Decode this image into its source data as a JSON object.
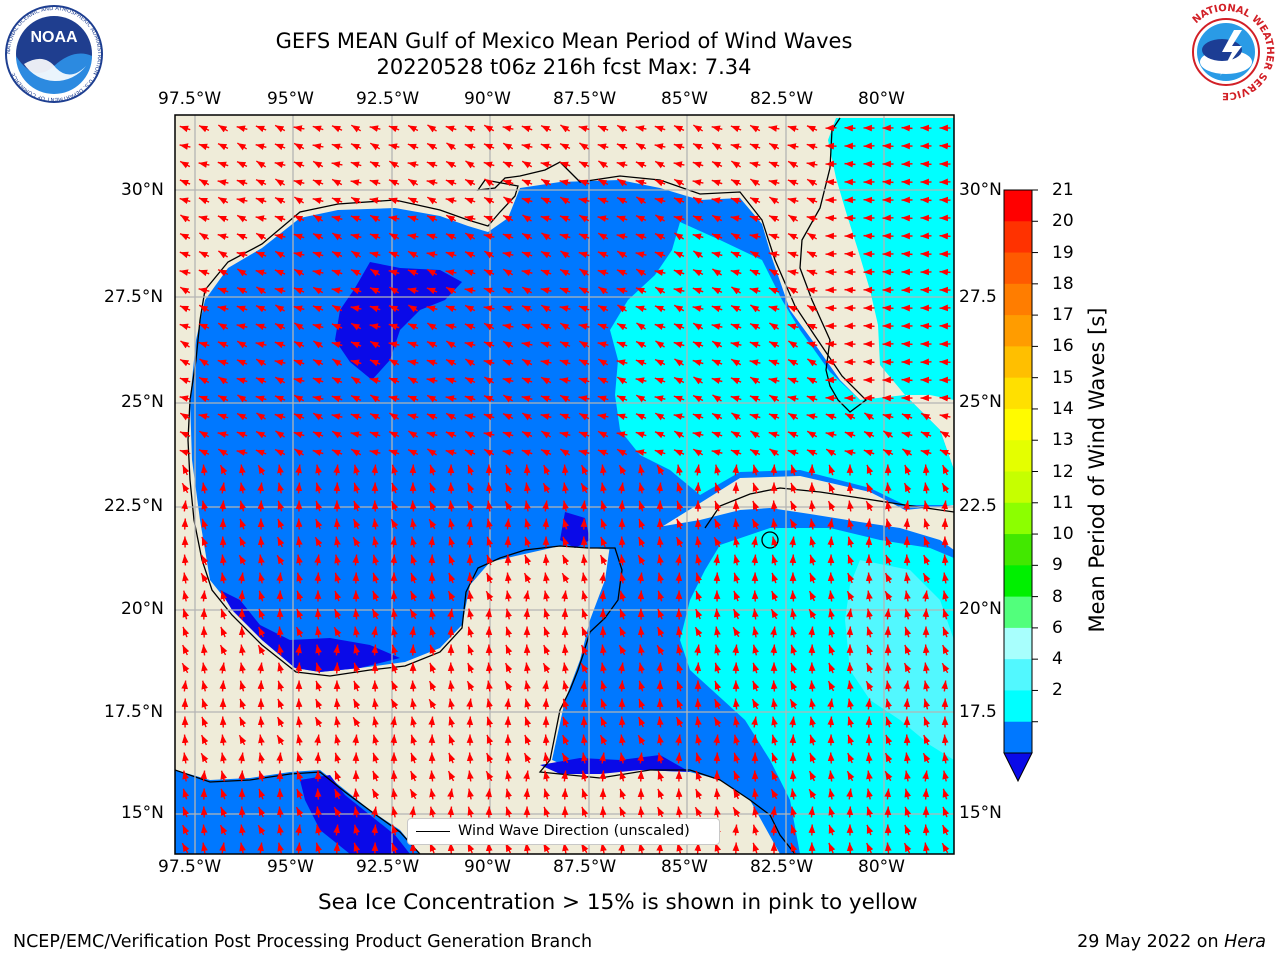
{
  "header": {
    "title_line1": "GEFS MEAN Gulf of Mexico Mean Period of Wind Waves",
    "title_line2": "20220528 t06z 216h fcst   Max: 7.34"
  },
  "logos": {
    "left": {
      "name": "NOAA",
      "ring_text": "NATIONAL OCEANIC AND ATMOSPHERIC ADMINISTRATION · U.S. DEPARTMENT OF COMMERCE"
    },
    "right": {
      "name": "National Weather Service",
      "ring_text": "NATIONAL WEATHER SERVICE"
    }
  },
  "map": {
    "lon_ticks": [
      "97.5°W",
      "95°W",
      "92.5°W",
      "90°W",
      "87.5°W",
      "85°W",
      "82.5°W",
      "80°W"
    ],
    "lat_ticks_left": [
      "30°N",
      "27.5°N",
      "25°N",
      "22.5°N",
      "20°N",
      "17.5°N",
      "15°N"
    ],
    "lat_ticks_right": [
      "30°N",
      "27.5",
      "25°N",
      "22.5",
      "20°N",
      "17.5",
      "15°N"
    ],
    "legend_label": "Wind Wave Direction (unscaled)",
    "colors": {
      "land": "#efecd9",
      "ocean_2_4": "#0078ff",
      "ocean_lt2": "#0a0ae8",
      "ocean_4_6": "#00ffff",
      "ocean_6_8": "#52f8ff",
      "arrow": "#ff0000"
    }
  },
  "colorbar": {
    "label": "Mean Period of Wind Waves [s]",
    "ticks": [
      "21",
      "20",
      "19",
      "18",
      "17",
      "16",
      "15",
      "14",
      "13",
      "12",
      "11",
      "10",
      "9",
      "8",
      "6",
      "4",
      "2"
    ],
    "colors": [
      "#ff0000",
      "#ff3200",
      "#ff5a00",
      "#ff7d00",
      "#ff9c00",
      "#ffbf00",
      "#ffe000",
      "#fffb00",
      "#e4ff00",
      "#c6ff00",
      "#8cff00",
      "#42e800",
      "#00f000",
      "#52ff7c",
      "#a8fffd",
      "#52f8ff",
      "#00ffff",
      "#0078ff"
    ],
    "extend_color": "#0a0ae8"
  },
  "notes": {
    "sea_ice": "Sea Ice Concentration > 15% is shown in pink to yellow"
  },
  "footer": {
    "left": "NCEP/EMC/Verification Post Processing Product Generation Branch",
    "date": "29 May 2022 on ",
    "host": "Hera"
  }
}
